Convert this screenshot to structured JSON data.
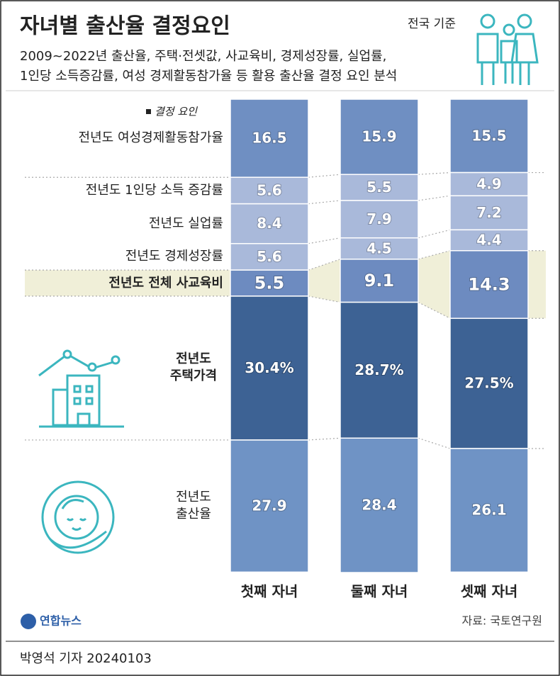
{
  "header": {
    "title": "자녀별 출산율 결정요인",
    "note": "전국 기준",
    "subtitle": [
      "2009~2022년 출산율, 주택·전셋값, 사교육비, 경제성장률, 실업률,",
      "1인당 소득증감률, 여성 경제활동참가율 등 활용 출산율 결정 요인 분석"
    ]
  },
  "chart_data": {
    "type": "stacked-bar",
    "legend_title": "결정 요인",
    "categories": [
      "첫째 자녀",
      "둘째 자녀",
      "셋째 자녀"
    ],
    "ylim": [
      0,
      100
    ],
    "series": [
      {
        "name": "전년도 여성경제활동참가율",
        "color": "#6f8fc2",
        "values": [
          16.5,
          15.9,
          15.5
        ]
      },
      {
        "name": "전년도 1인당 소득 증감률",
        "color": "#a9b9da",
        "values": [
          5.6,
          5.5,
          4.9
        ]
      },
      {
        "name": "전년도 실업률",
        "color": "#a9b9da",
        "values": [
          8.4,
          7.9,
          7.2
        ]
      },
      {
        "name": "전년도 경제성장률",
        "color": "#a9b9da",
        "values": [
          5.6,
          4.5,
          4.4
        ]
      },
      {
        "name": "전년도 전체 사교육비",
        "color": "#6d8bc0",
        "values": [
          5.5,
          9.1,
          14.3
        ]
      },
      {
        "name": "전년도 주택가격",
        "color": "#3d6294",
        "values": [
          30.4,
          28.7,
          27.5
        ],
        "value_labels": [
          "30.4%",
          "28.7%",
          "27.5%"
        ]
      },
      {
        "name": "전년도 출산율",
        "color": "#6f93c5",
        "values": [
          27.9,
          28.4,
          26.1
        ]
      }
    ]
  },
  "footer": {
    "source": "자료: 국토연구원",
    "logo": "연합뉴스",
    "byline": "박영석 기자  20240103"
  }
}
